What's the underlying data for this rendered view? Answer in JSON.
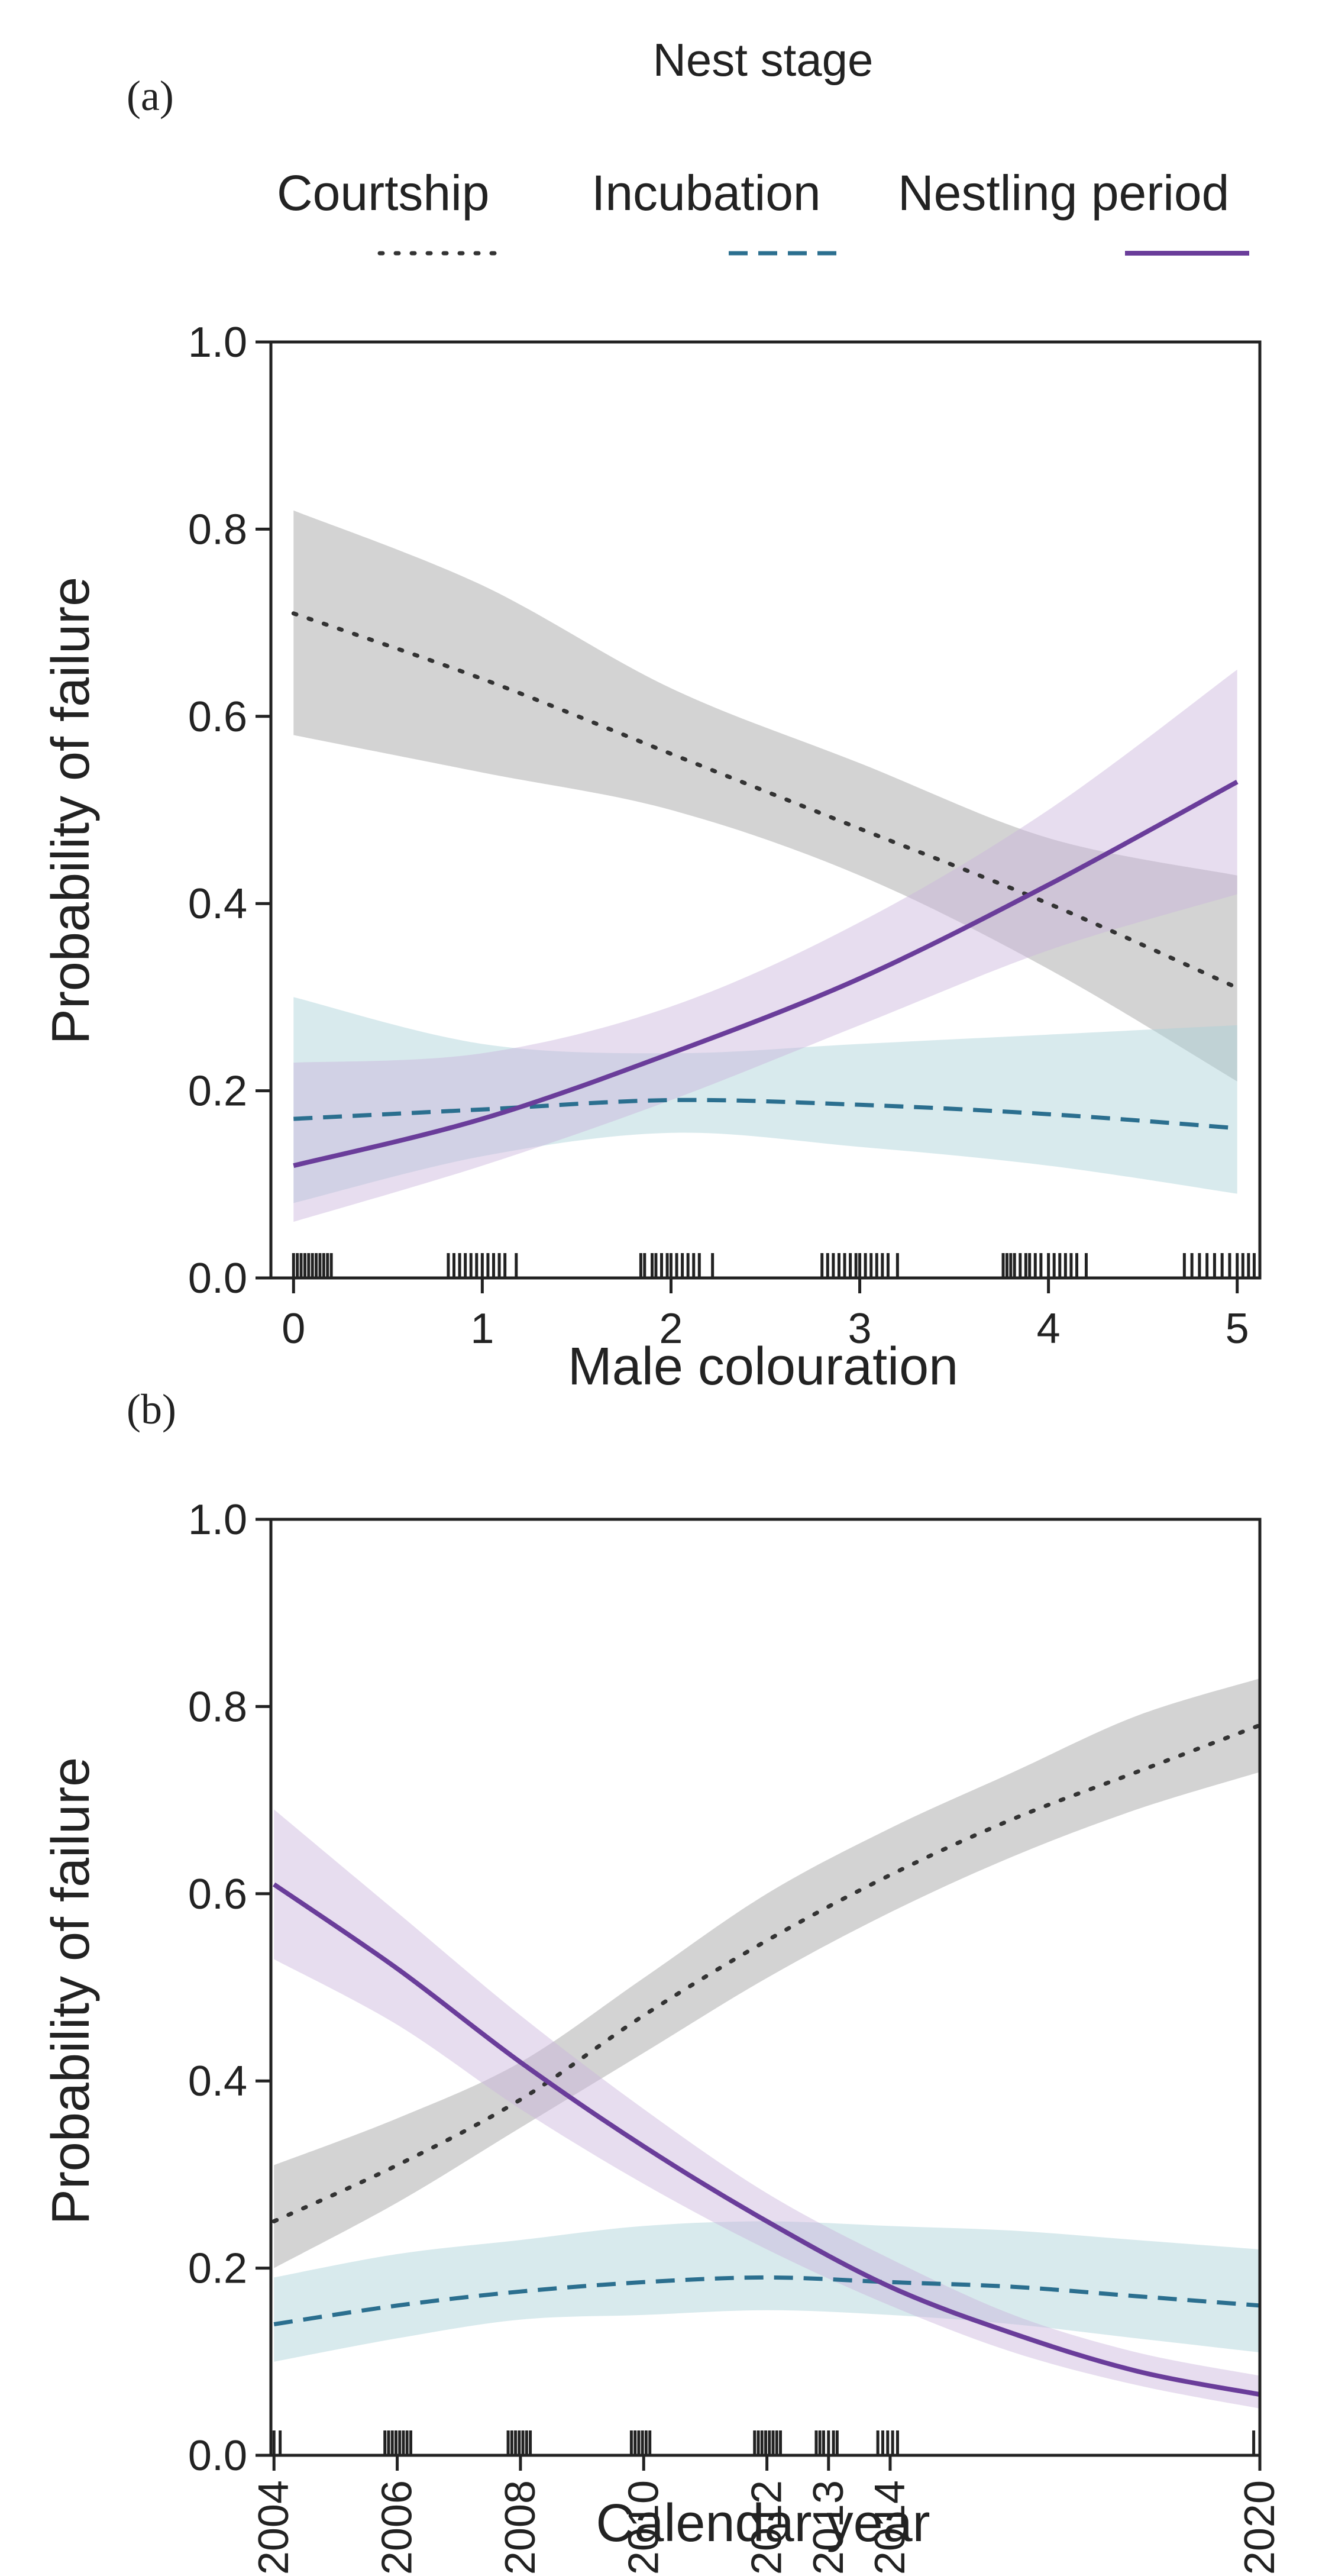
{
  "legend": {
    "title": "Nest stage",
    "entries": [
      {
        "key": "courtship",
        "label": "Courtship",
        "color": "#333333",
        "dash": "dotted"
      },
      {
        "key": "incubation",
        "label": "Incubation",
        "color": "#2b6f8f",
        "dash": "dashed"
      },
      {
        "key": "nestling",
        "label": "Nestling period",
        "color": "#6a3d9a",
        "dash": "solid"
      }
    ]
  },
  "band_colors": {
    "courtship": "#9e9e9e",
    "incubation": "#a9d0d8",
    "nestling": "#c9b3db"
  },
  "chart_data": [
    {
      "panel": "(a)",
      "type": "line",
      "xlabel": "Male colouration",
      "ylabel": "Probability of failure",
      "xlim": [
        -0.12,
        5.12
      ],
      "ylim": [
        0,
        1
      ],
      "xticks": [
        0,
        1,
        2,
        3,
        4,
        5
      ],
      "xtick_labels": [
        "0",
        "1",
        "2",
        "3",
        "4",
        "5"
      ],
      "yticks": [
        0,
        0.2,
        0.4,
        0.6,
        0.8,
        1.0
      ],
      "ytick_labels": [
        "0.0",
        "0.2",
        "0.4",
        "0.6",
        "0.8",
        "1.0"
      ],
      "series": [
        {
          "key": "courtship",
          "name": "Courtship",
          "x": [
            0,
            1,
            2,
            3,
            4,
            5
          ],
          "y": [
            0.71,
            0.64,
            0.56,
            0.48,
            0.4,
            0.31
          ],
          "lower": [
            0.58,
            0.54,
            0.5,
            0.43,
            0.33,
            0.21
          ],
          "upper": [
            0.82,
            0.74,
            0.63,
            0.55,
            0.47,
            0.43
          ]
        },
        {
          "key": "incubation",
          "name": "Incubation",
          "x": [
            0,
            1,
            2,
            3,
            4,
            5
          ],
          "y": [
            0.17,
            0.18,
            0.19,
            0.185,
            0.175,
            0.16
          ],
          "lower": [
            0.08,
            0.13,
            0.155,
            0.14,
            0.12,
            0.09
          ],
          "upper": [
            0.3,
            0.25,
            0.24,
            0.25,
            0.26,
            0.27
          ]
        },
        {
          "key": "nestling",
          "name": "Nestling period",
          "x": [
            0,
            1,
            2,
            3,
            4,
            5
          ],
          "y": [
            0.12,
            0.17,
            0.24,
            0.32,
            0.42,
            0.53
          ],
          "lower": [
            0.06,
            0.12,
            0.19,
            0.27,
            0.35,
            0.41
          ],
          "upper": [
            0.23,
            0.24,
            0.29,
            0.38,
            0.5,
            0.65
          ]
        }
      ],
      "rug": [
        0.0,
        0.02,
        0.04,
        0.06,
        0.08,
        0.1,
        0.12,
        0.14,
        0.16,
        0.18,
        0.2,
        0.82,
        0.85,
        0.88,
        0.91,
        0.94,
        0.97,
        1.0,
        1.03,
        1.06,
        1.09,
        1.12,
        1.18,
        1.84,
        1.86,
        1.9,
        1.92,
        1.95,
        1.98,
        2.0,
        2.03,
        2.06,
        2.09,
        2.12,
        2.15,
        2.22,
        2.8,
        2.83,
        2.86,
        2.89,
        2.92,
        2.95,
        2.98,
        3.0,
        3.03,
        3.06,
        3.09,
        3.12,
        3.15,
        3.2,
        3.76,
        3.78,
        3.8,
        3.82,
        3.85,
        3.88,
        3.9,
        3.93,
        3.96,
        4.0,
        4.03,
        4.06,
        4.09,
        4.12,
        4.15,
        4.2,
        4.72,
        4.76,
        4.8,
        4.84,
        4.88,
        4.92,
        4.96,
        5.0,
        5.03,
        5.06,
        5.09
      ]
    },
    {
      "panel": "(b)",
      "type": "line",
      "xlabel": "Calendar year",
      "ylabel": "Probability of failure",
      "xlim": [
        2003.95,
        2020.0
      ],
      "ylim": [
        0,
        1
      ],
      "xticks": [
        2004,
        2006,
        2008,
        2010,
        2012,
        2013,
        2014,
        2020
      ],
      "xtick_labels": [
        "2004",
        "2006",
        "2008",
        "2010",
        "2012",
        "2013",
        "2014",
        "2020"
      ],
      "yticks": [
        0,
        0.2,
        0.4,
        0.6,
        0.8,
        1.0
      ],
      "ytick_labels": [
        "0.0",
        "0.2",
        "0.4",
        "0.6",
        "0.8",
        "1.0"
      ],
      "series": [
        {
          "key": "courtship",
          "name": "Courtship",
          "x": [
            2004,
            2006,
            2008,
            2010,
            2012,
            2014,
            2016,
            2018,
            2020
          ],
          "y": [
            0.25,
            0.31,
            0.38,
            0.47,
            0.55,
            0.62,
            0.68,
            0.73,
            0.78
          ],
          "lower": [
            0.2,
            0.27,
            0.35,
            0.43,
            0.51,
            0.58,
            0.64,
            0.69,
            0.73
          ],
          "upper": [
            0.31,
            0.36,
            0.42,
            0.51,
            0.6,
            0.67,
            0.73,
            0.79,
            0.83
          ]
        },
        {
          "key": "incubation",
          "name": "Incubation",
          "x": [
            2004,
            2006,
            2008,
            2010,
            2012,
            2014,
            2016,
            2018,
            2020
          ],
          "y": [
            0.14,
            0.16,
            0.175,
            0.185,
            0.19,
            0.185,
            0.18,
            0.17,
            0.16
          ],
          "lower": [
            0.1,
            0.125,
            0.145,
            0.15,
            0.155,
            0.15,
            0.14,
            0.125,
            0.11
          ],
          "upper": [
            0.19,
            0.215,
            0.23,
            0.245,
            0.25,
            0.245,
            0.24,
            0.23,
            0.22
          ]
        },
        {
          "key": "nestling",
          "name": "Nestling period",
          "x": [
            2004,
            2006,
            2008,
            2010,
            2012,
            2014,
            2016,
            2018,
            2020
          ],
          "y": [
            0.61,
            0.52,
            0.42,
            0.33,
            0.25,
            0.18,
            0.13,
            0.09,
            0.065
          ],
          "lower": [
            0.53,
            0.46,
            0.37,
            0.29,
            0.22,
            0.16,
            0.11,
            0.075,
            0.05
          ],
          "upper": [
            0.69,
            0.58,
            0.47,
            0.37,
            0.28,
            0.21,
            0.15,
            0.11,
            0.085
          ]
        }
      ],
      "rug": [
        2004.0,
        2004.1,
        2005.8,
        2005.86,
        2005.92,
        2005.98,
        2006.04,
        2006.1,
        2006.16,
        2006.22,
        2007.8,
        2007.86,
        2007.92,
        2007.98,
        2008.04,
        2008.1,
        2008.16,
        2009.8,
        2009.86,
        2009.92,
        2009.98,
        2010.04,
        2010.1,
        2011.8,
        2011.86,
        2011.92,
        2011.98,
        2012.04,
        2012.1,
        2012.16,
        2012.22,
        2012.8,
        2012.86,
        2012.92,
        2013.0,
        2013.08,
        2013.14,
        2013.8,
        2013.88,
        2013.96,
        2014.04,
        2014.12,
        2019.9,
        2020.0
      ]
    }
  ]
}
